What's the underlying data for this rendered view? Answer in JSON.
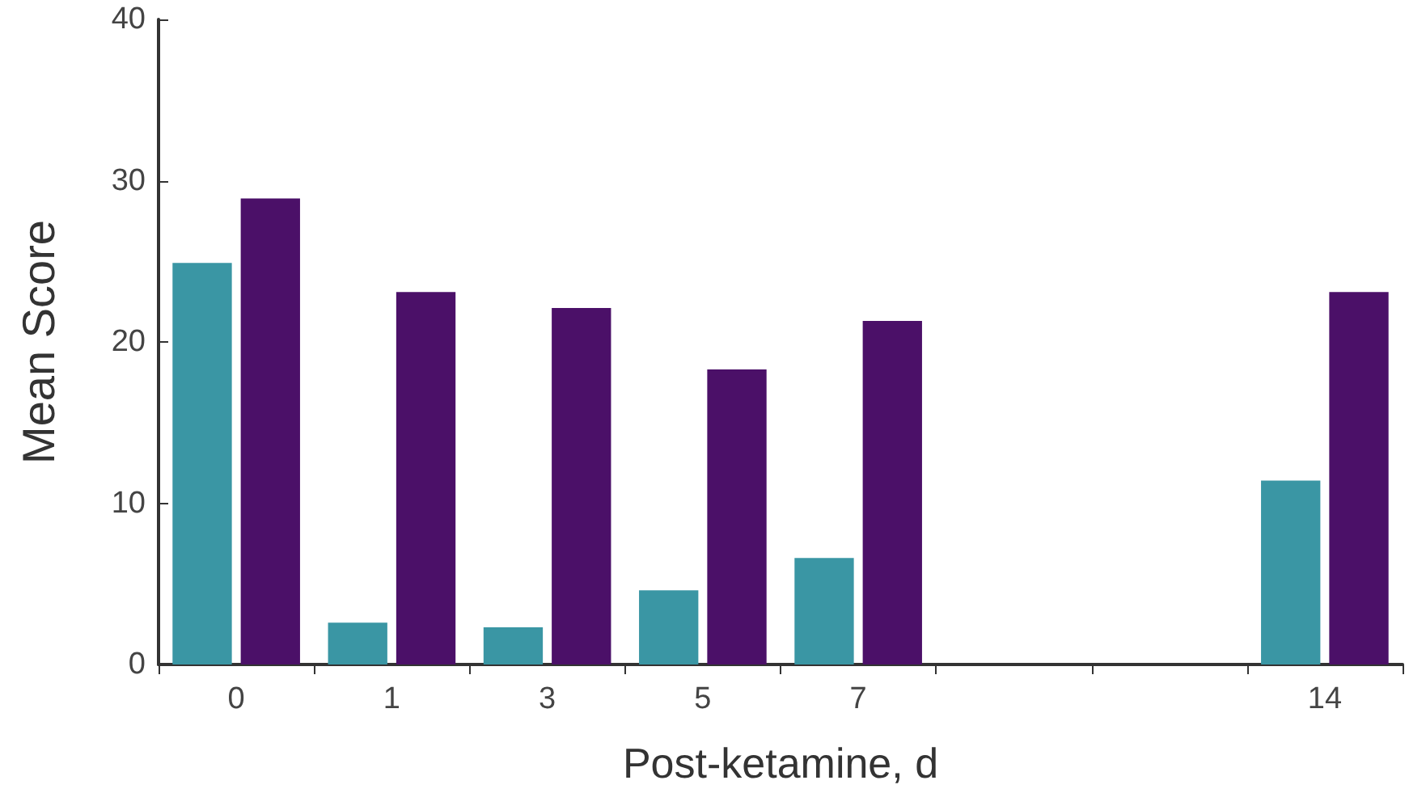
{
  "chart_data": {
    "type": "bar",
    "xlabel": "Post-ketamine, d",
    "ylabel": "Mean Score",
    "categories": [
      "0",
      "1",
      "3",
      "5",
      "7",
      null,
      null,
      "14"
    ],
    "series": [
      {
        "color": "#3a96a4",
        "values": [
          24.9,
          2.6,
          2.3,
          4.6,
          6.6,
          null,
          null,
          11.4
        ]
      },
      {
        "color": "#4b1068",
        "values": [
          28.9,
          23.1,
          22.1,
          18.3,
          21.3,
          null,
          null,
          23.1
        ]
      }
    ],
    "ylim": [
      0,
      40
    ],
    "yticks": [
      0,
      10,
      20,
      30,
      40
    ]
  }
}
